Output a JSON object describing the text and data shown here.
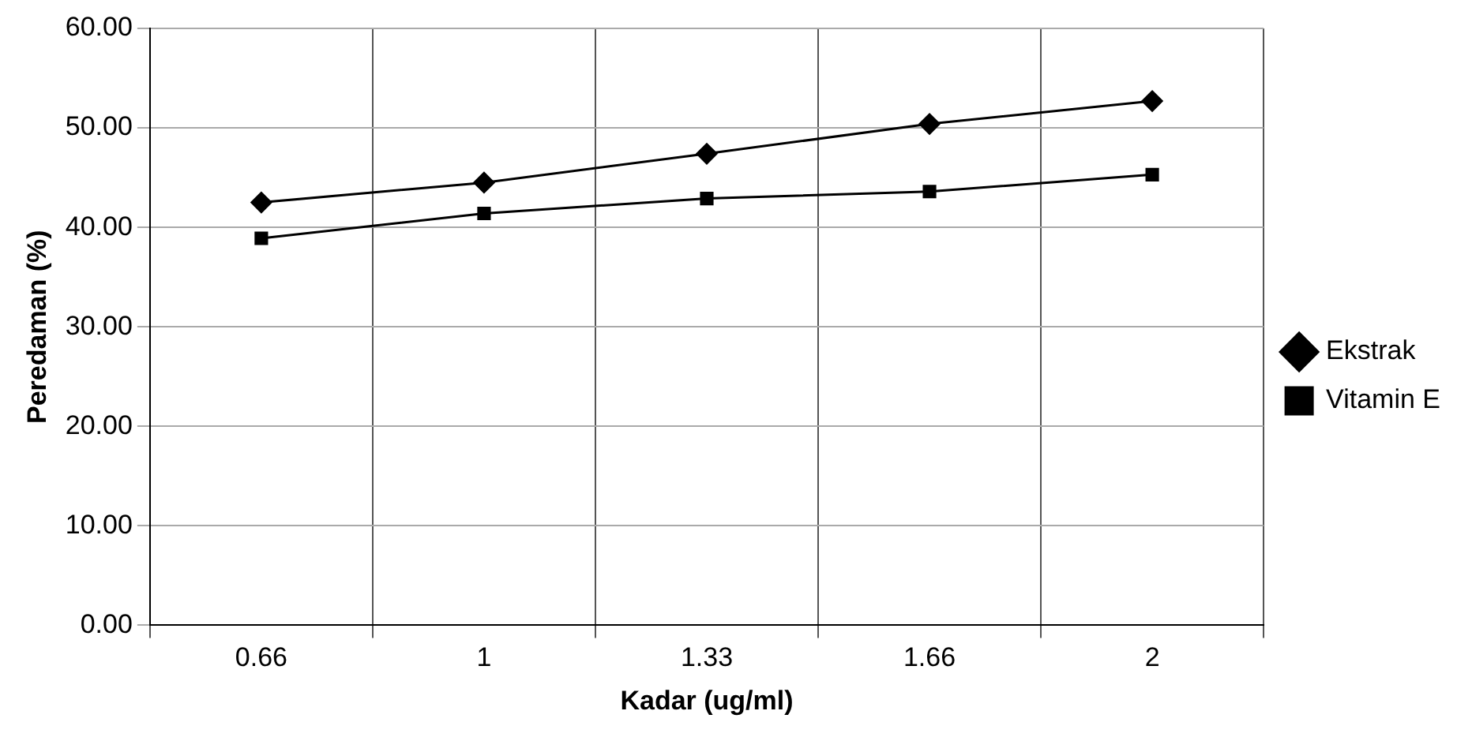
{
  "chart_data": {
    "type": "line",
    "xlabel": "Kadar (ug/ml)",
    "ylabel": "Peredaman (%)",
    "categories": [
      "0.66",
      "1",
      "1.33",
      "1.66",
      "2"
    ],
    "series": [
      {
        "name": "Ekstrak",
        "color": "#000000",
        "marker": "diamond",
        "values": [
          42.5,
          44.5,
          47.4,
          50.4,
          52.7
        ]
      },
      {
        "name": "Vitamin E",
        "color": "#000000",
        "marker": "square",
        "values": [
          38.9,
          41.4,
          42.9,
          43.6,
          45.3
        ]
      }
    ],
    "ylim": [
      0,
      60
    ],
    "yticks": [
      {
        "value": 0,
        "label": "0.00"
      },
      {
        "value": 10,
        "label": "10.00"
      },
      {
        "value": 20,
        "label": "20.00"
      },
      {
        "value": 30,
        "label": "30.00"
      },
      {
        "value": 40,
        "label": "40.00"
      },
      {
        "value": 50,
        "label": "50.00"
      },
      {
        "value": 60,
        "label": "60.00"
      }
    ],
    "grid": true,
    "legend": "right",
    "line_style": "solid"
  }
}
